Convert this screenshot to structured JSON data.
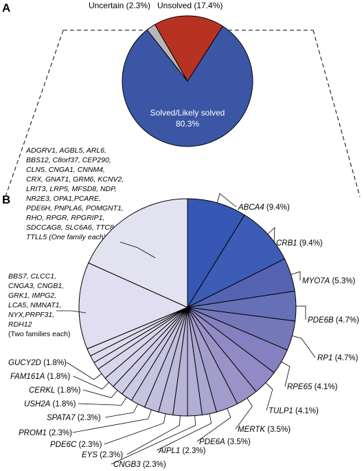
{
  "panel_labels": {
    "a": "A",
    "b": "B"
  },
  "colors": {
    "solved": "#3c56a6",
    "unsolved": "#b83222",
    "uncertain": "#b7b7b7",
    "outline": "#000000"
  },
  "chart_data": [
    {
      "type": "pie",
      "panel": "A",
      "title": "",
      "slices": [
        {
          "label": "Solved/Likely solved",
          "percent": 80.3,
          "value_text": "80.3%",
          "color": "#3c56a6"
        },
        {
          "label": "Unsolved",
          "percent": 17.4,
          "value_text": "Unsolved (17.4%)",
          "color": "#b83222"
        },
        {
          "label": "Uncertain",
          "percent": 2.3,
          "value_text": "Uncertain (2.3%)",
          "color": "#b7b7b7"
        }
      ]
    },
    {
      "type": "pie",
      "panel": "B",
      "title": "",
      "slices": [
        {
          "gene": "ABCA4",
          "pct": "(9.4%)",
          "percent": 9.4,
          "color": "#3657b3"
        },
        {
          "gene": "CRB1",
          "pct": "(9.4%)",
          "percent": 9.4,
          "color": "#3d5cb5"
        },
        {
          "gene": "MYO7A",
          "pct": "(5.3%)",
          "percent": 5.3,
          "color": "#5563b3"
        },
        {
          "gene": "PDE6B",
          "pct": "(4.7%)",
          "percent": 4.7,
          "color": "#6670b6"
        },
        {
          "gene": "RP1",
          "pct": "(4.7%)",
          "percent": 4.7,
          "color": "#7478b9"
        },
        {
          "gene": "RPE65",
          "pct": "(4.1%)",
          "percent": 4.1,
          "color": "#8580bf"
        },
        {
          "gene": "TULP1",
          "pct": "(4.1%)",
          "percent": 4.1,
          "color": "#928ac4"
        },
        {
          "gene": "MERTK",
          "pct": "(3.5%)",
          "percent": 3.5,
          "color": "#9b93c8"
        },
        {
          "gene": "PDE6A",
          "pct": "(3.5%)",
          "percent": 3.5,
          "color": "#a39dcc"
        },
        {
          "gene": "AIPL1",
          "pct": "(2.3%)",
          "percent": 2.3,
          "color": "#aca7d1"
        },
        {
          "gene": "CNGB3",
          "pct": "(2.3%)",
          "percent": 2.3,
          "color": "#b2aed5"
        },
        {
          "gene": "EYS",
          "pct": "(2.3%)",
          "percent": 2.3,
          "color": "#b8b4d8"
        },
        {
          "gene": "PDE6C",
          "pct": "(2.3%)",
          "percent": 2.3,
          "color": "#bdbadb"
        },
        {
          "gene": "PROM1",
          "pct": "(2.3%)",
          "percent": 2.3,
          "color": "#c2bfde"
        },
        {
          "gene": "SPATA7",
          "pct": "(2.3%)",
          "percent": 2.3,
          "color": "#c7c4e1"
        },
        {
          "gene": "USH2A",
          "pct": "(1.8%)",
          "percent": 1.8,
          "color": "#ccc9e4"
        },
        {
          "gene": "CERKL",
          "pct": "(1.8%)",
          "percent": 1.8,
          "color": "#d0cee6"
        },
        {
          "gene": "FAM161A",
          "pct": "(1.8%)",
          "percent": 1.8,
          "color": "#d4d2e8"
        },
        {
          "gene": "GUCY2D",
          "pct": "(1.8%)",
          "percent": 1.8,
          "color": "#d8d6ea"
        },
        {
          "gene": "",
          "pct": "",
          "percent": 1.2,
          "color": "#dbd9ec"
        },
        {
          "gene": "",
          "pct": "",
          "percent": 1.2,
          "color": "#dddbed"
        },
        {
          "gene": "",
          "pct": "",
          "percent": 1.2,
          "color": "#dfdeee"
        },
        {
          "gene": "BBS7 / CLCC1 / ... (Two families each)",
          "pct": "",
          "percent": 13.8,
          "color": "#e0def0"
        },
        {
          "gene": "ADGRV1 / AGBL5 / ... (One family each)",
          "pct": "",
          "percent": 19.5,
          "color": "#e3e2f0"
        }
      ],
      "group_labels": {
        "two_families": [
          "BBS7, CLCC1,",
          "CNGA3, CNGB1,",
          "GRK1, IMPG2,",
          "LCA5, NMNAT1,",
          "NYX,PRPF31,",
          "RDH12",
          "(Two families each)"
        ],
        "one_family": [
          "ADGRV1, AGBL5, ARL6,",
          "BBS12, C8orf37, CEP290,",
          "CLN5, CNGA1, CNNM4,",
          "CRX, GNAT1, GRM6, KCNV2,",
          "LRIT3, LRP5, MFSD8, NDP,",
          "NR2E3, OPA1,PCARE,",
          "PDE6H, PNPLA6, POMGNT1,",
          "RHO, RPGR, RPGRIP1,",
          "SDCCAG8, SLC6A6, TTC8,",
          "TTLL5 (One family each)"
        ]
      }
    }
  ]
}
